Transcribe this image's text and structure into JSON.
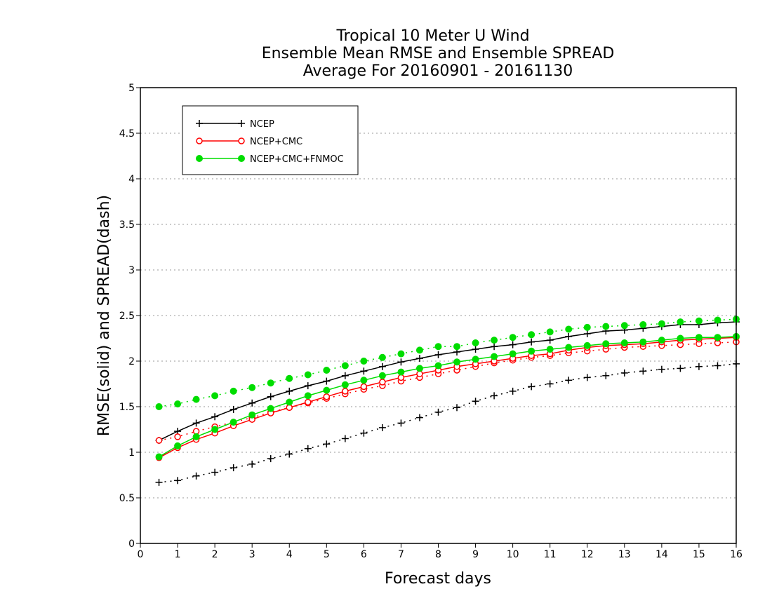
{
  "chart_data": {
    "type": "line",
    "title": [
      "Tropical 10 Meter U Wind",
      "Ensemble Mean RMSE and Ensemble SPREAD",
      "Average For 20160901 - 20161130"
    ],
    "xlabel": "Forecast days",
    "ylabel": "RMSE(solid) and SPREAD(dash)",
    "xlim": [
      0,
      16
    ],
    "ylim": [
      0,
      5
    ],
    "x_ticks": [
      "0",
      "1",
      "2",
      "3",
      "4",
      "5",
      "6",
      "7",
      "8",
      "9",
      "10",
      "11",
      "12",
      "13",
      "14",
      "15",
      "16"
    ],
    "y_ticks": [
      "0",
      "0.5",
      "1",
      "1.5",
      "2",
      "2.5",
      "3",
      "3.5",
      "4",
      "4.5",
      "5"
    ],
    "grid": "horizontal dotted",
    "legend_position": "top-left",
    "x": [
      0.5,
      1,
      1.5,
      2,
      2.5,
      3,
      3.5,
      4,
      4.5,
      5,
      5.5,
      6,
      6.5,
      7,
      7.5,
      8,
      8.5,
      9,
      9.5,
      10,
      10.5,
      11,
      11.5,
      12,
      12.5,
      13,
      13.5,
      14,
      14.5,
      15,
      15.5,
      16
    ],
    "series": [
      {
        "name": "NCEP",
        "color": "#000000",
        "marker": "plus",
        "rmse": [
          1.13,
          1.23,
          1.32,
          1.39,
          1.47,
          1.54,
          1.61,
          1.67,
          1.73,
          1.78,
          1.84,
          1.89,
          1.94,
          1.99,
          2.03,
          2.07,
          2.1,
          2.13,
          2.16,
          2.18,
          2.21,
          2.23,
          2.27,
          2.3,
          2.33,
          2.34,
          2.36,
          2.38,
          2.4,
          2.4,
          2.42,
          2.43
        ],
        "spread": [
          0.67,
          0.69,
          0.74,
          0.78,
          0.83,
          0.87,
          0.93,
          0.98,
          1.04,
          1.09,
          1.15,
          1.21,
          1.27,
          1.32,
          1.38,
          1.44,
          1.49,
          1.56,
          1.62,
          1.67,
          1.72,
          1.75,
          1.79,
          1.82,
          1.84,
          1.87,
          1.89,
          1.91,
          1.92,
          1.94,
          1.95,
          1.97
        ]
      },
      {
        "name": "NCEP+CMC",
        "color": "#ff0000",
        "marker": "open-circle",
        "rmse": [
          0.94,
          1.05,
          1.14,
          1.21,
          1.29,
          1.36,
          1.43,
          1.49,
          1.55,
          1.61,
          1.67,
          1.72,
          1.77,
          1.82,
          1.86,
          1.9,
          1.94,
          1.97,
          2.0,
          2.03,
          2.06,
          2.08,
          2.12,
          2.15,
          2.17,
          2.18,
          2.19,
          2.21,
          2.23,
          2.24,
          2.25,
          2.26
        ],
        "spread": [
          1.13,
          1.17,
          1.23,
          1.28,
          1.33,
          1.38,
          1.44,
          1.49,
          1.54,
          1.59,
          1.64,
          1.69,
          1.73,
          1.78,
          1.82,
          1.86,
          1.9,
          1.94,
          1.98,
          2.01,
          2.04,
          2.06,
          2.09,
          2.11,
          2.13,
          2.15,
          2.16,
          2.17,
          2.18,
          2.19,
          2.2,
          2.21
        ]
      },
      {
        "name": "NCEP+CMC+FNMOC",
        "color": "#00dd00",
        "marker": "filled-circle",
        "rmse": [
          0.95,
          1.07,
          1.17,
          1.25,
          1.33,
          1.41,
          1.48,
          1.55,
          1.62,
          1.68,
          1.74,
          1.79,
          1.84,
          1.88,
          1.92,
          1.95,
          1.99,
          2.02,
          2.05,
          2.08,
          2.11,
          2.13,
          2.15,
          2.17,
          2.19,
          2.2,
          2.21,
          2.23,
          2.25,
          2.26,
          2.26,
          2.27
        ],
        "spread": [
          1.5,
          1.53,
          1.58,
          1.62,
          1.67,
          1.71,
          1.76,
          1.81,
          1.85,
          1.9,
          1.95,
          2.0,
          2.04,
          2.08,
          2.12,
          2.16,
          2.16,
          2.2,
          2.23,
          2.26,
          2.29,
          2.32,
          2.35,
          2.37,
          2.38,
          2.39,
          2.4,
          2.41,
          2.43,
          2.44,
          2.45,
          2.46
        ]
      }
    ]
  }
}
